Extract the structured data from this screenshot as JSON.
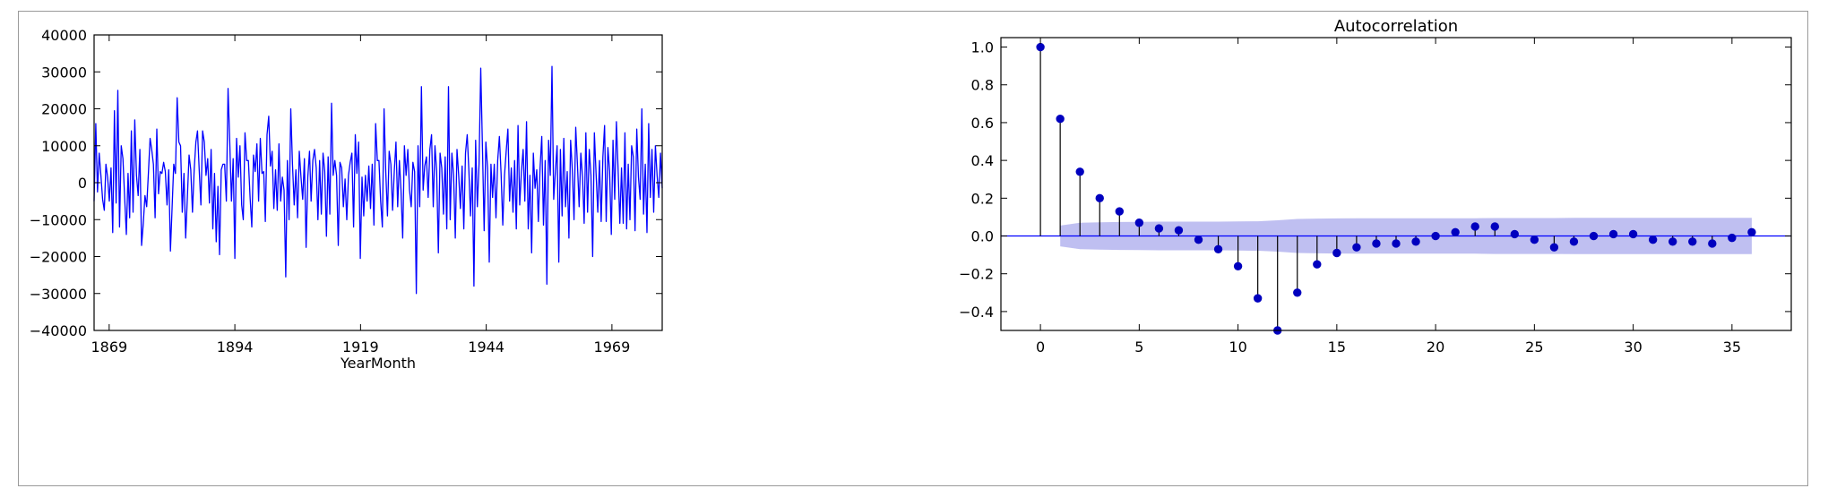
{
  "colors": {
    "series": "#0000ff",
    "markers": "#0000bf",
    "stems": "#000000",
    "baseline": "#0000ff",
    "confidence_band": "#8a8ae6",
    "frame": "#000000",
    "figure_border": "#9a9a9a"
  },
  "chart_data": [
    {
      "type": "line",
      "title": "",
      "xlabel": "YearMonth",
      "ylabel": "",
      "xlim": [
        1866,
        1979
      ],
      "ylim": [
        -40000,
        40000
      ],
      "xticks": [
        1869,
        1894,
        1919,
        1944,
        1969
      ],
      "yticks": [
        -40000,
        -30000,
        -20000,
        -10000,
        0,
        10000,
        20000,
        30000,
        40000
      ],
      "grid": false,
      "series": [
        {
          "name": "",
          "x_start": 1866,
          "x_end": 1979,
          "y": [
            -5000,
            16000,
            -2500,
            8000,
            2000,
            -4500,
            -7500,
            5000,
            1500,
            -5000,
            4000,
            -13500,
            19500,
            -5500,
            25000,
            -12000,
            10000,
            6500,
            -4000,
            -14000,
            2500,
            -9500,
            14000,
            -8000,
            17000,
            2000,
            -3500,
            9000,
            -17000,
            -11000,
            -3500,
            -6500,
            2500,
            12000,
            9000,
            5000,
            -9500,
            14500,
            -3000,
            3000,
            2500,
            5500,
            3000,
            -6000,
            3500,
            -18500,
            -6500,
            5000,
            2500,
            23000,
            11000,
            10000,
            -8000,
            2500,
            -15000,
            -4000,
            7500,
            3500,
            -8000,
            3500,
            11000,
            14000,
            3500,
            -6000,
            14000,
            11000,
            2000,
            6500,
            -5500,
            9000,
            -12500,
            2500,
            -16000,
            -1000,
            -19500,
            3500,
            5000,
            5000,
            -5000,
            25500,
            11000,
            -5000,
            6500,
            -20500,
            12000,
            1500,
            10000,
            -6000,
            -10000,
            13500,
            6000,
            6000,
            -4000,
            -12000,
            7500,
            3000,
            10500,
            -5000,
            12000,
            2500,
            3000,
            -10500,
            13000,
            18000,
            4500,
            8500,
            -7000,
            3500,
            -7500,
            10500,
            -5000,
            1500,
            -2000,
            -25500,
            6000,
            -10000,
            20000,
            5000,
            -6000,
            3500,
            -9500,
            8500,
            1500,
            -4500,
            6500,
            -17500,
            1500,
            8500,
            -5000,
            6000,
            9000,
            4000,
            -10000,
            6000,
            -8500,
            8000,
            3000,
            -14500,
            7000,
            -8500,
            21500,
            2000,
            6000,
            2000,
            -17000,
            5500,
            4000,
            -6500,
            1000,
            -10000,
            2000,
            5500,
            8000,
            -12000,
            13000,
            2500,
            11000,
            -20500,
            1500,
            -9000,
            2000,
            -5000,
            4500,
            -7000,
            5000,
            -11500,
            16000,
            6000,
            6000,
            -5000,
            -12000,
            20000,
            3000,
            -9000,
            8500,
            5000,
            -7500,
            3000,
            11000,
            -6500,
            6000,
            -2000,
            -15000,
            10000,
            2000,
            9000,
            -2000,
            -6500,
            5500,
            3000,
            -30000,
            10000,
            -6500,
            26000,
            -2000,
            4500,
            7000,
            -4000,
            9000,
            13000,
            -6500,
            10000,
            3000,
            -19000,
            8000,
            4000,
            -8500,
            7000,
            -12500,
            26000,
            -10000,
            8000,
            2000,
            -15000,
            9000,
            2000,
            -7000,
            4500,
            -12500,
            8000,
            13000,
            3000,
            -9000,
            4000,
            -28000,
            11500,
            -6500,
            5000,
            31000,
            9500,
            -13000,
            11000,
            4000,
            -21500,
            5000,
            -4000,
            5000,
            -9500,
            6000,
            12500,
            2500,
            -11500,
            2000,
            8500,
            14500,
            -5000,
            4000,
            -8000,
            6000,
            -12500,
            15500,
            -6000,
            3000,
            9000,
            -5000,
            16500,
            -12500,
            2000,
            -19000,
            8000,
            -1500,
            3500,
            -10500,
            4000,
            12500,
            -11500,
            6000,
            -27500,
            11500,
            2000,
            31500,
            -4500,
            3000,
            10000,
            -21500,
            9000,
            -9000,
            12000,
            -6500,
            3000,
            -15000,
            11500,
            3500,
            -10000,
            15000,
            5000,
            -6500,
            8000,
            1500,
            -11000,
            13500,
            -8000,
            9000,
            2000,
            -20000,
            13500,
            2500,
            -8000,
            6000,
            -10500,
            7000,
            15500,
            -10500,
            9500,
            3000,
            -14000,
            11500,
            -4500,
            16500,
            3500,
            -11000,
            4000,
            -11000,
            13500,
            -12500,
            5000,
            -10000,
            10000,
            7000,
            -13000,
            14500,
            1500,
            -4500,
            20000,
            -8500,
            5000,
            -13500,
            16000,
            -4000,
            9000,
            -8000,
            10000,
            2000,
            -4000,
            8000,
            -1500
          ]
        }
      ]
    },
    {
      "type": "stem",
      "title": "Autocorrelation",
      "xlabel": "",
      "ylabel": "",
      "xlim": [
        -2,
        38
      ],
      "ylim": [
        -0.5,
        1.05
      ],
      "xticks": [
        0,
        5,
        10,
        15,
        20,
        25,
        30,
        35
      ],
      "yticks": [
        -0.4,
        -0.2,
        0.0,
        0.2,
        0.4,
        0.6,
        0.8,
        1.0
      ],
      "grid": false,
      "lags": [
        0,
        1,
        2,
        3,
        4,
        5,
        6,
        7,
        8,
        9,
        10,
        11,
        12,
        13,
        14,
        15,
        16,
        17,
        18,
        19,
        20,
        21,
        22,
        23,
        24,
        25,
        26,
        27,
        28,
        29,
        30,
        31,
        32,
        33,
        34,
        35,
        36
      ],
      "values": [
        1.0,
        0.62,
        0.34,
        0.2,
        0.13,
        0.07,
        0.04,
        0.03,
        -0.02,
        -0.07,
        -0.16,
        -0.33,
        -0.5,
        -0.3,
        -0.15,
        -0.09,
        -0.06,
        -0.04,
        -0.04,
        -0.03,
        0.0,
        0.02,
        0.05,
        0.05,
        0.01,
        -0.02,
        -0.06,
        -0.03,
        0.0,
        0.01,
        0.01,
        -0.02,
        -0.03,
        -0.03,
        -0.04,
        -0.01,
        0.02
      ],
      "confidence_interval": [
        0.0,
        0.055,
        0.07,
        0.072,
        0.074,
        0.075,
        0.076,
        0.076,
        0.076,
        0.076,
        0.077,
        0.078,
        0.083,
        0.09,
        0.092,
        0.093,
        0.094,
        0.094,
        0.094,
        0.094,
        0.094,
        0.094,
        0.094,
        0.095,
        0.095,
        0.095,
        0.095,
        0.096,
        0.096,
        0.096,
        0.096,
        0.096,
        0.096,
        0.096,
        0.096,
        0.096,
        0.096
      ]
    }
  ]
}
